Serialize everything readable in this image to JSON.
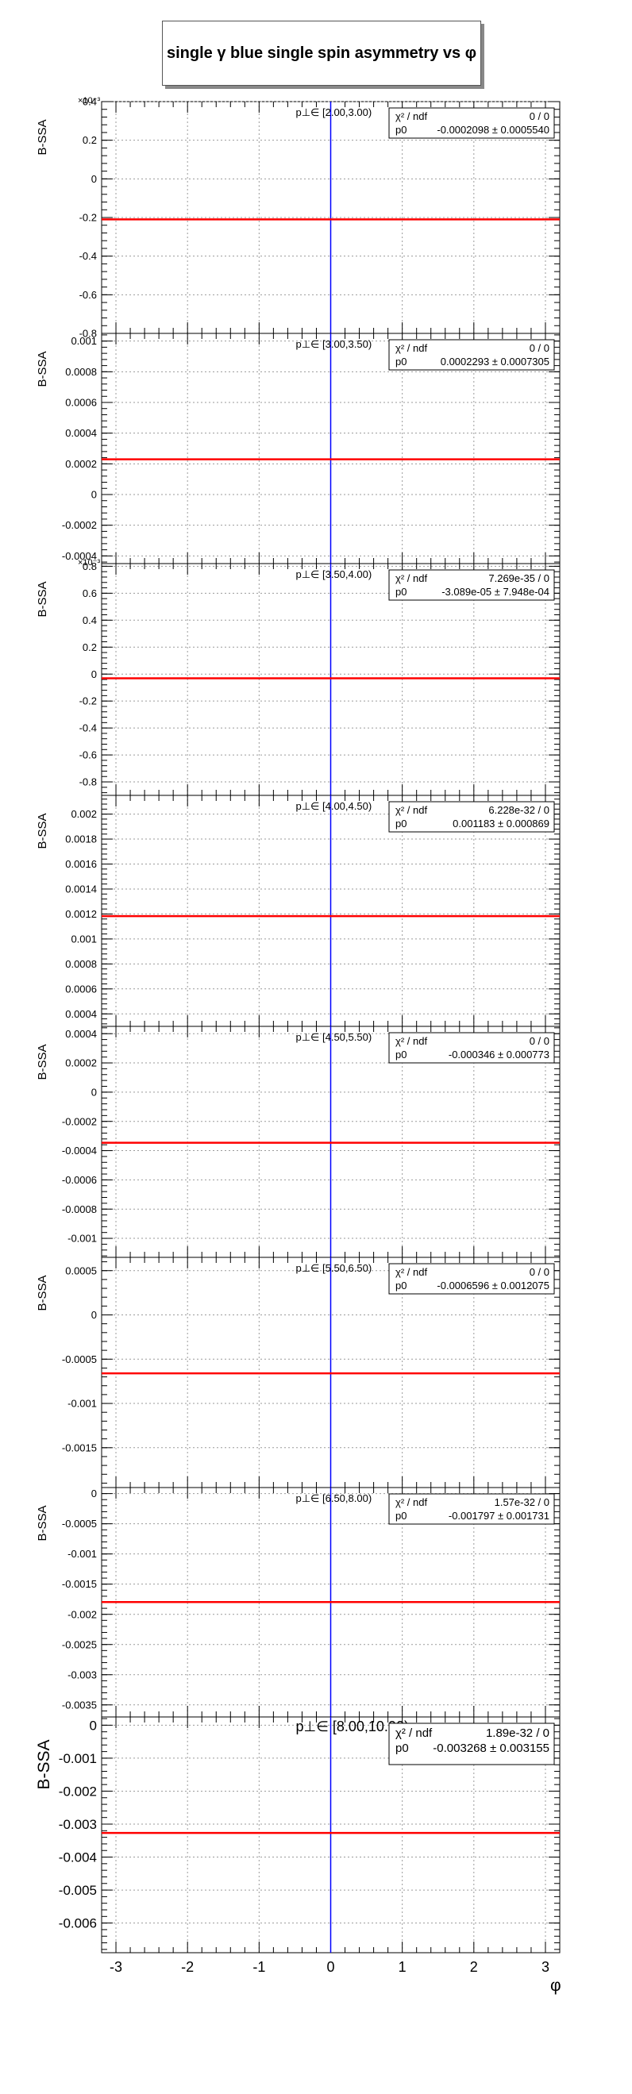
{
  "title": "single γ blue single spin asymmetry vs φ",
  "colors": {
    "fit_line": "#ff0000",
    "center_line": "#0000ff",
    "grid": "#9a9a9a",
    "frame": "#000000"
  },
  "chart_data": {
    "type": "line",
    "xlabel": "φ",
    "xlim": [
      -3.2,
      3.2
    ],
    "x_ticks": [
      -3,
      -2,
      -1,
      0,
      1,
      2,
      3
    ],
    "vertical_line_x": 0,
    "grid": true,
    "legend_position": "top-right",
    "panels": [
      {
        "label": "p⊥∈ [2.00,3.00)",
        "ylabel": "B-SSA",
        "exponent_label": "×10⁻³",
        "ylim": [
          -0.8,
          0.4
        ],
        "y_ticks": [
          -0.8,
          -0.6,
          -0.4,
          -0.2,
          0,
          0.2,
          0.4
        ],
        "y_tick_labels": [
          "-0.8",
          "-0.6",
          "-0.4",
          "-0.2",
          "0",
          "0.2",
          "0.4"
        ],
        "fit_value": -0.2098,
        "stats": {
          "chi2_label": "χ² / ndf",
          "chi2_value": "0 / 0",
          "p0_label": "p0",
          "p0_value": "-0.0002098 ± 0.0005540"
        }
      },
      {
        "label": "p⊥∈ [3.00,3.50)",
        "ylabel": "B-SSA",
        "exponent_label": "",
        "ylim": [
          -0.00045,
          0.00105
        ],
        "y_ticks": [
          -0.0004,
          -0.0002,
          0,
          0.0002,
          0.0004,
          0.0006,
          0.0008,
          0.001
        ],
        "y_tick_labels": [
          "-0.0004",
          "-0.0002",
          "0",
          "0.0002",
          "0.0004",
          "0.0006",
          "0.0008",
          "0.001"
        ],
        "fit_value": 0.0002293,
        "stats": {
          "chi2_label": "χ² / ndf",
          "chi2_value": "0 / 0",
          "p0_label": "p0",
          "p0_value": "0.0002293 ± 0.0007305"
        }
      },
      {
        "label": "p⊥∈ [3.50,4.00)",
        "ylabel": "B-SSA",
        "exponent_label": "×10⁻³",
        "ylim": [
          -0.9,
          0.82
        ],
        "y_ticks": [
          -0.8,
          -0.6,
          -0.4,
          -0.2,
          0,
          0.2,
          0.4,
          0.6,
          0.8
        ],
        "y_tick_labels": [
          "-0.8",
          "-0.6",
          "-0.4",
          "-0.2",
          "0",
          "0.2",
          "0.4",
          "0.6",
          "0.8"
        ],
        "fit_value": -0.03089,
        "stats": {
          "chi2_label": "χ² / ndf",
          "chi2_value": "7.269e-35 / 0",
          "p0_label": "p0",
          "p0_value": "-3.089e-05 ± 7.948e-04"
        }
      },
      {
        "label": "p⊥∈ [4.00,4.50)",
        "ylabel": "B-SSA",
        "exponent_label": "",
        "ylim": [
          0.0003,
          0.00215
        ],
        "y_ticks": [
          0.0004,
          0.0006,
          0.0008,
          0.001,
          0.0012,
          0.0014,
          0.0016,
          0.0018,
          0.002
        ],
        "y_tick_labels": [
          "0.0004",
          "0.0006",
          "0.0008",
          "0.001",
          "0.0012",
          "0.0014",
          "0.0016",
          "0.0018",
          "0.002"
        ],
        "fit_value": 0.001183,
        "stats": {
          "chi2_label": "χ² / ndf",
          "chi2_value": "6.228e-32 / 0",
          "p0_label": "p0",
          "p0_value": "0.001183 ± 0.000869"
        }
      },
      {
        "label": "p⊥∈ [4.50,5.50)",
        "ylabel": "B-SSA",
        "exponent_label": "",
        "ylim": [
          -0.00113,
          0.00045
        ],
        "y_ticks": [
          -0.001,
          -0.0008,
          -0.0006,
          -0.0004,
          -0.0002,
          0,
          0.0002,
          0.0004
        ],
        "y_tick_labels": [
          "-0.001",
          "-0.0008",
          "-0.0006",
          "-0.0004",
          "-0.0002",
          "0",
          "0.0002",
          "0.0004"
        ],
        "fit_value": -0.000346,
        "stats": {
          "chi2_label": "χ² / ndf",
          "chi2_value": "0 / 0",
          "p0_label": "p0",
          "p0_value": "-0.000346 ± 0.000773"
        }
      },
      {
        "label": "p⊥∈ [5.50,6.50)",
        "ylabel": "B-SSA",
        "exponent_label": "",
        "ylim": [
          -0.00195,
          0.00065
        ],
        "y_ticks": [
          -0.0015,
          -0.001,
          -0.0005,
          0,
          0.0005
        ],
        "y_tick_labels": [
          "-0.0015",
          "-0.001",
          "-0.0005",
          "0",
          "0.0005"
        ],
        "fit_value": -0.0006596,
        "stats": {
          "chi2_label": "χ² / ndf",
          "chi2_value": "0 / 0",
          "p0_label": "p0",
          "p0_value": "-0.0006596 ± 0.0012075"
        }
      },
      {
        "label": "p⊥∈ [6.50,8.00)",
        "ylabel": "B-SSA",
        "exponent_label": "",
        "ylim": [
          -0.0037,
          0.0001
        ],
        "y_ticks": [
          -0.0035,
          -0.003,
          -0.0025,
          -0.002,
          -0.0015,
          -0.001,
          -0.0005,
          0
        ],
        "y_tick_labels": [
          "-0.0035",
          "-0.003",
          "-0.0025",
          "-0.002",
          "-0.0015",
          "-0.001",
          "-0.0005",
          "0"
        ],
        "fit_value": -0.001797,
        "stats": {
          "chi2_label": "χ² / ndf",
          "chi2_value": "1.57e-32 / 0",
          "p0_label": "p0",
          "p0_value": "-0.001797 ± 0.001731"
        }
      },
      {
        "label": "p⊥∈ [8.00,10.00)",
        "ylabel": "B-SSA",
        "exponent_label": "",
        "ylim": [
          -0.0069,
          0.00025
        ],
        "y_ticks": [
          -0.006,
          -0.005,
          -0.004,
          -0.003,
          -0.002,
          -0.001,
          0
        ],
        "y_tick_labels": [
          "-0.006",
          "-0.005",
          "-0.004",
          "-0.003",
          "-0.002",
          "-0.001",
          "0"
        ],
        "fit_value": -0.003268,
        "stats": {
          "chi2_label": "χ² / ndf",
          "chi2_value": "1.89e-32 / 0",
          "p0_label": "p0",
          "p0_value": "-0.003268 ± 0.003155"
        }
      }
    ]
  }
}
